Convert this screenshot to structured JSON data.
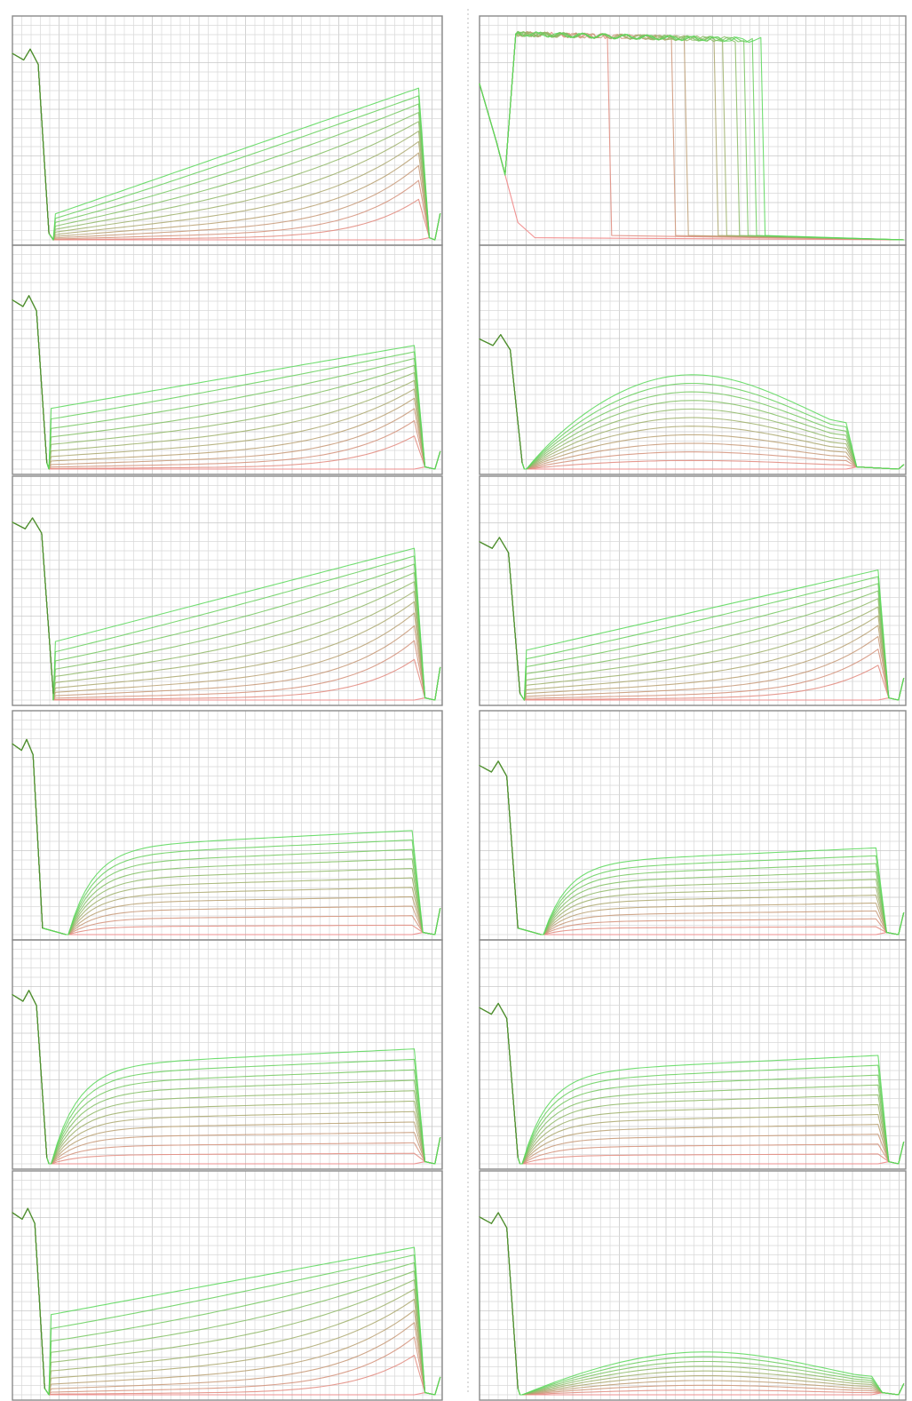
{
  "colors": {
    "background": "#ffffff",
    "grid": "#d9d9d9",
    "frame": "#8a8a8a",
    "trace_low": "#f08080",
    "trace_high": "#58d858",
    "trace_dark": "#4f7a2a"
  },
  "chart_data": [
    {
      "type": "line",
      "panel": "row1-left",
      "pattern": "ramp",
      "shape": {
        "lead": 0.1,
        "dropX": 0.075,
        "riseStart": 0.1,
        "riseEnd": 0.945,
        "tailEnd": 0.995,
        "leadLevel": 0.86,
        "tailLevel": 0.12,
        "startTop": 0.12,
        "endTop": 0.7,
        "plateau": 0.0,
        "curves": 12
      },
      "grid": true,
      "xlim": [
        0,
        1
      ],
      "ylim": [
        0,
        1
      ]
    },
    {
      "type": "line",
      "panel": "row1-right",
      "pattern": "saturated",
      "shape": {
        "rampTo": 0.1,
        "plateauLevel": 0.95,
        "cutoffs": [
          0.3,
          0.45,
          0.48,
          0.55,
          0.57,
          0.6,
          0.62,
          0.64,
          0.66
        ],
        "curves": 10
      },
      "grid": true,
      "xlim": [
        0,
        1
      ],
      "ylim": [
        0,
        1
      ]
    },
    {
      "type": "line",
      "panel": "row2-left",
      "pattern": "ramp",
      "shape": {
        "lead": 0.1,
        "dropX": 0.07,
        "riseStart": 0.09,
        "riseEnd": 0.935,
        "tailEnd": 0.995,
        "leadLevel": 0.78,
        "tailLevel": 0.08,
        "startTop": 0.28,
        "endTop": 0.57,
        "plateau": 0.0,
        "curves": 12
      },
      "grid": true,
      "xlim": [
        0,
        1
      ],
      "ylim": [
        0,
        1
      ]
    },
    {
      "type": "line",
      "panel": "row2-right",
      "pattern": "hump",
      "shape": {
        "lead": 0.1,
        "dropX": 0.09,
        "riseStart": 0.11,
        "riseEnd": 0.86,
        "tailEnd": 0.995,
        "leadLevel": 0.6,
        "tailLevel": 0.02,
        "startTop": 0.28,
        "endTop": 0.44,
        "plateau": 0.0,
        "curves": 12
      },
      "grid": true,
      "xlim": [
        0,
        1
      ],
      "ylim": [
        0,
        1
      ]
    },
    {
      "type": "line",
      "panel": "row3-left",
      "pattern": "ramp",
      "shape": {
        "lead": 0.1,
        "dropX": 0.085,
        "riseStart": 0.1,
        "riseEnd": 0.935,
        "tailEnd": 0.995,
        "leadLevel": 0.82,
        "tailLevel": 0.15,
        "startTop": 0.27,
        "endTop": 0.7,
        "plateau": 0.0,
        "curves": 12
      },
      "grid": true,
      "xlim": [
        0,
        1
      ],
      "ylim": [
        0,
        1
      ]
    },
    {
      "type": "line",
      "panel": "row3-right",
      "pattern": "ramp",
      "shape": {
        "lead": 0.1,
        "dropX": 0.085,
        "riseStart": 0.11,
        "riseEnd": 0.935,
        "tailEnd": 0.995,
        "leadLevel": 0.73,
        "tailLevel": 0.1,
        "startTop": 0.23,
        "endTop": 0.6,
        "plateau": 0.0,
        "curves": 12
      },
      "grid": true,
      "xlim": [
        0,
        1
      ],
      "ylim": [
        0,
        1
      ]
    },
    {
      "type": "line",
      "panel": "row4-left",
      "pattern": "plateau",
      "shape": {
        "lead": 0.05,
        "dropX": 0.06,
        "riseStart": 0.13,
        "riseEnd": 0.93,
        "tailEnd": 0.995,
        "leadLevel": 0.88,
        "tailLevel": 0.12,
        "startTop": 0.4,
        "endTop": 0.48,
        "plateau": 0.0,
        "curves": 12
      },
      "grid": true,
      "xlim": [
        0,
        1
      ],
      "ylim": [
        0,
        1
      ]
    },
    {
      "type": "line",
      "panel": "row4-right",
      "pattern": "plateau",
      "shape": {
        "lead": 0.05,
        "dropX": 0.08,
        "riseStart": 0.15,
        "riseEnd": 0.93,
        "tailEnd": 0.995,
        "leadLevel": 0.78,
        "tailLevel": 0.1,
        "startTop": 0.33,
        "endTop": 0.4,
        "plateau": 0.0,
        "curves": 12
      },
      "grid": true,
      "xlim": [
        0,
        1
      ],
      "ylim": [
        0,
        1
      ]
    },
    {
      "type": "line",
      "panel": "row5-left",
      "pattern": "plateau",
      "shape": {
        "lead": 0.05,
        "dropX": 0.07,
        "riseStart": 0.09,
        "riseEnd": 0.935,
        "tailEnd": 0.995,
        "leadLevel": 0.78,
        "tailLevel": 0.12,
        "startTop": 0.45,
        "endTop": 0.53,
        "plateau": 0.0,
        "curves": 12
      },
      "grid": true,
      "xlim": [
        0,
        1
      ],
      "ylim": [
        0,
        1
      ]
    },
    {
      "type": "line",
      "panel": "row5-right",
      "pattern": "plateau",
      "shape": {
        "lead": 0.05,
        "dropX": 0.08,
        "riseStart": 0.1,
        "riseEnd": 0.935,
        "tailEnd": 0.995,
        "leadLevel": 0.72,
        "tailLevel": 0.1,
        "startTop": 0.42,
        "endTop": 0.5,
        "plateau": 0.0,
        "curves": 12
      },
      "grid": true,
      "xlim": [
        0,
        1
      ],
      "ylim": [
        0,
        1
      ]
    },
    {
      "type": "line",
      "panel": "row6-left",
      "pattern": "ramp",
      "shape": {
        "lead": 0.06,
        "dropX": 0.065,
        "riseStart": 0.09,
        "riseEnd": 0.935,
        "tailEnd": 0.995,
        "leadLevel": 0.84,
        "tailLevel": 0.08,
        "startTop": 0.37,
        "endTop": 0.68,
        "plateau": 0.0,
        "curves": 12
      },
      "grid": true,
      "xlim": [
        0,
        1
      ],
      "ylim": [
        0,
        1
      ]
    },
    {
      "type": "line",
      "panel": "row6-right",
      "pattern": "hump",
      "shape": {
        "lead": 0.06,
        "dropX": 0.08,
        "riseStart": 0.1,
        "riseEnd": 0.92,
        "tailEnd": 0.995,
        "leadLevel": 0.82,
        "tailLevel": 0.05,
        "startTop": 0.1,
        "endTop": 0.2,
        "plateau": 0.0,
        "curves": 10
      },
      "grid": true,
      "xlim": [
        0,
        1
      ],
      "ylim": [
        0,
        1
      ]
    }
  ]
}
